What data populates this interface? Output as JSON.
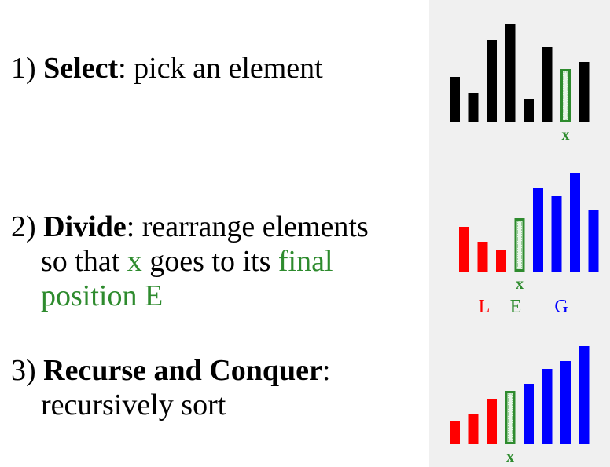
{
  "steps": [
    {
      "num": "1)",
      "title": "Select",
      "rest": ": pick an element"
    },
    {
      "num": "2)",
      "title": "Divide",
      "rest": ": rearrange elements",
      "line2a": "so that ",
      "x": "x",
      "line2b": " goes to its ",
      "final": "final",
      "line3": "position E"
    },
    {
      "num": "3)",
      "title": "Recurse and Conquer",
      "rest": ":",
      "line2": "recursively sort"
    }
  ],
  "colors": {
    "black": "#000000",
    "red": "#ff0000",
    "blue": "#0000ff",
    "green": "#2e8b2e",
    "panel": "#f0f0f0"
  },
  "diagram1": {
    "bars": [
      {
        "value": 58,
        "color": "black"
      },
      {
        "value": 38,
        "color": "black"
      },
      {
        "value": 105,
        "color": "black"
      },
      {
        "value": 125,
        "color": "black"
      },
      {
        "value": 30,
        "color": "black"
      },
      {
        "value": 96,
        "color": "black"
      },
      {
        "value": 68,
        "color": "pivot"
      },
      {
        "value": 77,
        "color": "black"
      }
    ],
    "pivot_label": "x"
  },
  "diagram2": {
    "bars": [
      {
        "value": 57,
        "color": "red"
      },
      {
        "value": 38,
        "color": "red"
      },
      {
        "value": 28,
        "color": "red"
      },
      {
        "value": 68,
        "color": "pivot"
      },
      {
        "value": 106,
        "color": "blue"
      },
      {
        "value": 96,
        "color": "blue"
      },
      {
        "value": 125,
        "color": "blue"
      },
      {
        "value": 78,
        "color": "blue"
      }
    ],
    "pivot_label": "x",
    "group_labels": [
      {
        "text": "L",
        "color": "red"
      },
      {
        "text": "E",
        "color": "green"
      },
      {
        "text": "G",
        "color": "blue"
      }
    ]
  },
  "diagram3": {
    "bars": [
      {
        "value": 30,
        "color": "red"
      },
      {
        "value": 39,
        "color": "red"
      },
      {
        "value": 58,
        "color": "red"
      },
      {
        "value": 68,
        "color": "pivot"
      },
      {
        "value": 77,
        "color": "blue"
      },
      {
        "value": 96,
        "color": "blue"
      },
      {
        "value": 106,
        "color": "blue"
      },
      {
        "value": 125,
        "color": "blue"
      }
    ],
    "pivot_label": "x"
  }
}
